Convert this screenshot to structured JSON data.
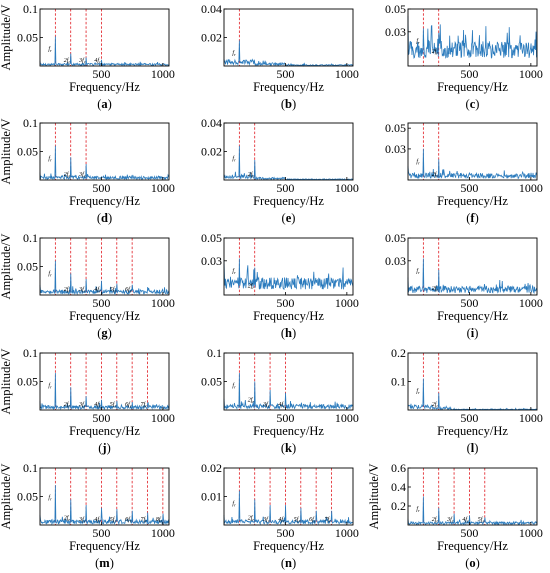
{
  "chart_data": [
    {
      "id": "a",
      "caption": "(a)",
      "type": "line",
      "xlabel": "Frequency/Hz",
      "ylabel": "Amplitude/V",
      "xlim": [
        0,
        1050
      ],
      "ylim": [
        0,
        0.1
      ],
      "xticks": [
        "500",
        "1000"
      ],
      "yticks": [
        "0.05",
        "0.1"
      ],
      "noise_level": 0.004,
      "harmonics": [
        {
          "label": "f_r",
          "freq": 125,
          "amp": 0.052
        },
        {
          "label": "2f_r",
          "freq": 250,
          "amp": 0.022
        },
        {
          "label": "3f_r",
          "freq": 375,
          "amp": 0.015
        },
        {
          "label": "4f_r",
          "freq": 500,
          "amp": 0.011
        }
      ],
      "series": [
        {
          "color": "#2b7bbd"
        }
      ]
    },
    {
      "id": "b",
      "caption": "(b)",
      "type": "line",
      "xlabel": "Frequency/Hz",
      "ylabel": "",
      "xlim": [
        0,
        1050
      ],
      "ylim": [
        0,
        0.04
      ],
      "xticks": [
        "500",
        "1000"
      ],
      "yticks": [
        "0.02",
        "0.04"
      ],
      "noise_level": 0.0022,
      "harmonics": [
        {
          "label": "f_r",
          "freq": 125,
          "amp": 0.018
        }
      ],
      "series": [
        {
          "color": "#2b7bbd"
        }
      ]
    },
    {
      "id": "c",
      "caption": "(c)",
      "type": "line",
      "xlabel": "Frequency/Hz",
      "ylabel": "",
      "xlim": [
        0,
        1050
      ],
      "ylim": [
        0,
        0.05
      ],
      "xticks": [
        "500",
        "1000"
      ],
      "yticks": [
        "0.03",
        "0.05"
      ],
      "noise_level": 0.02,
      "harmonics": [
        {
          "label": "f_r",
          "freq": 125,
          "amp": 0.033
        },
        {
          "label": "2f_r",
          "freq": 250,
          "amp": 0.029
        }
      ],
      "series": [
        {
          "color": "#2b7bbd"
        }
      ]
    },
    {
      "id": "d",
      "caption": "(d)",
      "type": "line",
      "xlabel": "Frequency/Hz",
      "ylabel": "Amplitude/V",
      "xlim": [
        0,
        1050
      ],
      "ylim": [
        0,
        0.1
      ],
      "xticks": [
        "500",
        "1000"
      ],
      "yticks": [
        "0.05",
        "0.1"
      ],
      "noise_level": 0.006,
      "harmonics": [
        {
          "label": "f_r",
          "freq": 125,
          "amp": 0.06
        },
        {
          "label": "2f_r",
          "freq": 250,
          "amp": 0.04
        },
        {
          "label": "3f_r",
          "freq": 375,
          "amp": 0.028
        }
      ],
      "series": [
        {
          "color": "#2b7bbd"
        }
      ]
    },
    {
      "id": "e",
      "caption": "(e)",
      "type": "line",
      "xlabel": "Frequency/Hz",
      "ylabel": "",
      "xlim": [
        0,
        1050
      ],
      "ylim": [
        0,
        0.04
      ],
      "xticks": [
        "500",
        "1000"
      ],
      "yticks": [
        "0.02",
        "0.04"
      ],
      "noise_level": 0.0018,
      "harmonics": [
        {
          "label": "f_r",
          "freq": 125,
          "amp": 0.024
        },
        {
          "label": "2f_r",
          "freq": 250,
          "amp": 0.014
        }
      ],
      "series": [
        {
          "color": "#2b7bbd"
        }
      ]
    },
    {
      "id": "f",
      "caption": "(f)",
      "type": "line",
      "xlabel": "Frequency/Hz",
      "ylabel": "",
      "xlim": [
        0,
        1050
      ],
      "ylim": [
        0,
        0.055
      ],
      "xticks": [
        "500",
        "1000"
      ],
      "yticks": [
        "0.03",
        "0.05"
      ],
      "noise_level": 0.006,
      "harmonics": [
        {
          "label": "f_r",
          "freq": 125,
          "amp": 0.03
        },
        {
          "label": "2f_r",
          "freq": 250,
          "amp": 0.02
        }
      ],
      "series": [
        {
          "color": "#2b7bbd"
        }
      ]
    },
    {
      "id": "g",
      "caption": "(g)",
      "type": "line",
      "xlabel": "Frequency/Hz",
      "ylabel": "Amplitude/V",
      "xlim": [
        0,
        1050
      ],
      "ylim": [
        0,
        0.1
      ],
      "xticks": [
        "500",
        "1000"
      ],
      "yticks": [
        "0.05",
        "0.1"
      ],
      "noise_level": 0.008,
      "harmonics": [
        {
          "label": "f_r",
          "freq": 125,
          "amp": 0.06
        },
        {
          "label": "2f_r",
          "freq": 250,
          "amp": 0.038
        },
        {
          "label": "3f_r",
          "freq": 375,
          "amp": 0.028
        },
        {
          "label": "4f_r",
          "freq": 500,
          "amp": 0.025
        },
        {
          "label": "5f_r",
          "freq": 625,
          "amp": 0.02
        },
        {
          "label": "6f_r",
          "freq": 750,
          "amp": 0.018
        }
      ],
      "series": [
        {
          "color": "#2b7bbd"
        }
      ]
    },
    {
      "id": "h",
      "caption": "(h)",
      "type": "line",
      "xlabel": "Frequency/Hz",
      "ylabel": "",
      "xlim": [
        0,
        1050
      ],
      "ylim": [
        0,
        0.05
      ],
      "xticks": [
        "500",
        "1000"
      ],
      "yticks": [
        "0.03",
        "0.05"
      ],
      "noise_level": 0.014,
      "harmonics": [
        {
          "label": "f_r",
          "freq": 125,
          "amp": 0.032
        },
        {
          "label": "2f_r",
          "freq": 250,
          "amp": 0.024
        }
      ],
      "series": [
        {
          "color": "#2b7bbd"
        }
      ]
    },
    {
      "id": "i",
      "caption": "(i)",
      "type": "line",
      "xlabel": "Frequency/Hz",
      "ylabel": "",
      "xlim": [
        0,
        1050
      ],
      "ylim": [
        0,
        0.05
      ],
      "xticks": [
        "500",
        "1000"
      ],
      "yticks": [
        "0.03",
        "0.05"
      ],
      "noise_level": 0.007,
      "harmonics": [
        {
          "label": "f_r",
          "freq": 125,
          "amp": 0.032
        },
        {
          "label": "2f_r",
          "freq": 250,
          "amp": 0.022
        }
      ],
      "series": [
        {
          "color": "#2b7bbd"
        }
      ]
    },
    {
      "id": "j",
      "caption": "(j)",
      "type": "line",
      "xlabel": "Frequency/Hz",
      "ylabel": "Amplitude/V",
      "xlim": [
        0,
        1050
      ],
      "ylim": [
        0,
        0.1
      ],
      "xticks": [
        "500",
        "1000"
      ],
      "yticks": [
        "0.05",
        "0.1"
      ],
      "noise_level": 0.007,
      "harmonics": [
        {
          "label": "f_r",
          "freq": 125,
          "amp": 0.065
        },
        {
          "label": "2f_r",
          "freq": 250,
          "amp": 0.04
        },
        {
          "label": "3f_r",
          "freq": 375,
          "amp": 0.024
        },
        {
          "label": "4f_r",
          "freq": 500,
          "amp": 0.018
        },
        {
          "label": "5f_r",
          "freq": 625,
          "amp": 0.016
        },
        {
          "label": "6f_r",
          "freq": 750,
          "amp": 0.014
        },
        {
          "label": "7f_r",
          "freq": 875,
          "amp": 0.012
        }
      ],
      "series": [
        {
          "color": "#2b7bbd"
        }
      ]
    },
    {
      "id": "k",
      "caption": "(k)",
      "type": "line",
      "xlabel": "Frequency/Hz",
      "ylabel": "",
      "xlim": [
        0,
        1050
      ],
      "ylim": [
        0,
        0.1
      ],
      "xticks": [
        "500",
        "1000"
      ],
      "yticks": [
        "0.05",
        "0.1"
      ],
      "noise_level": 0.009,
      "harmonics": [
        {
          "label": "f_r",
          "freq": 125,
          "amp": 0.065
        },
        {
          "label": "2f_r",
          "freq": 250,
          "amp": 0.05
        },
        {
          "label": "3f_r",
          "freq": 375,
          "amp": 0.035
        },
        {
          "label": "4f_r",
          "freq": 500,
          "amp": 0.03
        }
      ],
      "series": [
        {
          "color": "#2b7bbd"
        }
      ]
    },
    {
      "id": "l",
      "caption": "(l)",
      "type": "line",
      "xlabel": "Frequency/Hz",
      "ylabel": "",
      "xlim": [
        0,
        1050
      ],
      "ylim": [
        0,
        0.2
      ],
      "xticks": [
        "500",
        "1000"
      ],
      "yticks": [
        "0.1",
        "0.2"
      ],
      "noise_level": 0.006,
      "harmonics": [
        {
          "label": "f_r",
          "freq": 125,
          "amp": 0.11
        },
        {
          "label": "2f_r",
          "freq": 250,
          "amp": 0.06
        }
      ],
      "series": [
        {
          "color": "#2b7bbd"
        }
      ]
    },
    {
      "id": "m",
      "caption": "(m)",
      "type": "line",
      "xlabel": "Frequency/Hz",
      "ylabel": "Amplitude/V",
      "xlim": [
        0,
        1050
      ],
      "ylim": [
        0,
        0.1
      ],
      "xticks": [
        "500",
        "1000"
      ],
      "yticks": [
        "0.05",
        "0.1"
      ],
      "noise_level": 0.008,
      "harmonics": [
        {
          "label": "f_r",
          "freq": 125,
          "amp": 0.07
        },
        {
          "label": "2f_r",
          "freq": 250,
          "amp": 0.045
        },
        {
          "label": "3f_r",
          "freq": 375,
          "amp": 0.035
        },
        {
          "label": "4f_r",
          "freq": 500,
          "amp": 0.03
        },
        {
          "label": "5f_r",
          "freq": 625,
          "amp": 0.028
        },
        {
          "label": "6f_r",
          "freq": 750,
          "amp": 0.025
        },
        {
          "label": "7f_r",
          "freq": 875,
          "amp": 0.022
        },
        {
          "label": "8f_r",
          "freq": 1000,
          "amp": 0.02
        }
      ],
      "series": [
        {
          "color": "#2b7bbd"
        }
      ]
    },
    {
      "id": "n",
      "caption": "(n)",
      "type": "line",
      "xlabel": "Frequency/Hz",
      "ylabel": "",
      "xlim": [
        0,
        1050
      ],
      "ylim": [
        0,
        0.02
      ],
      "xticks": [
        "500",
        "1000"
      ],
      "yticks": [
        "0.01",
        "0.02"
      ],
      "noise_level": 0.0016,
      "harmonics": [
        {
          "label": "f_r",
          "freq": 125,
          "amp": 0.012
        },
        {
          "label": "2f_r",
          "freq": 250,
          "amp": 0.009
        },
        {
          "label": "3f_r",
          "freq": 375,
          "amp": 0.007
        },
        {
          "label": "4f_r",
          "freq": 500,
          "amp": 0.007
        },
        {
          "label": "5f_r",
          "freq": 625,
          "amp": 0.006
        },
        {
          "label": "6f_r",
          "freq": 750,
          "amp": 0.005
        },
        {
          "label": "7f_r",
          "freq": 875,
          "amp": 0.005
        }
      ],
      "series": [
        {
          "color": "#2b7bbd"
        }
      ]
    },
    {
      "id": "o",
      "caption": "(o)",
      "type": "line",
      "xlabel": "Frequency/Hz",
      "ylabel": "Amplitude/V",
      "xlim": [
        0,
        1050
      ],
      "ylim": [
        0,
        0.6
      ],
      "xticks": [
        "500",
        "1000"
      ],
      "yticks": [
        "0.2",
        "0.4",
        "0.6"
      ],
      "noise_level": 0.03,
      "harmonics": [
        {
          "label": "f_r",
          "freq": 125,
          "amp": 0.3
        },
        {
          "label": "2f_r",
          "freq": 250,
          "amp": 0.18
        },
        {
          "label": "3f_r",
          "freq": 375,
          "amp": 0.12
        },
        {
          "label": "4f_r",
          "freq": 500,
          "amp": 0.1
        },
        {
          "label": "5f_r",
          "freq": 625,
          "amp": 0.08
        }
      ],
      "series": [
        {
          "color": "#2b7bbd"
        }
      ]
    }
  ],
  "colors": {
    "spectrum": "#2b7bbd",
    "harmonic_line": "#e0181f",
    "axis": "#000000"
  }
}
